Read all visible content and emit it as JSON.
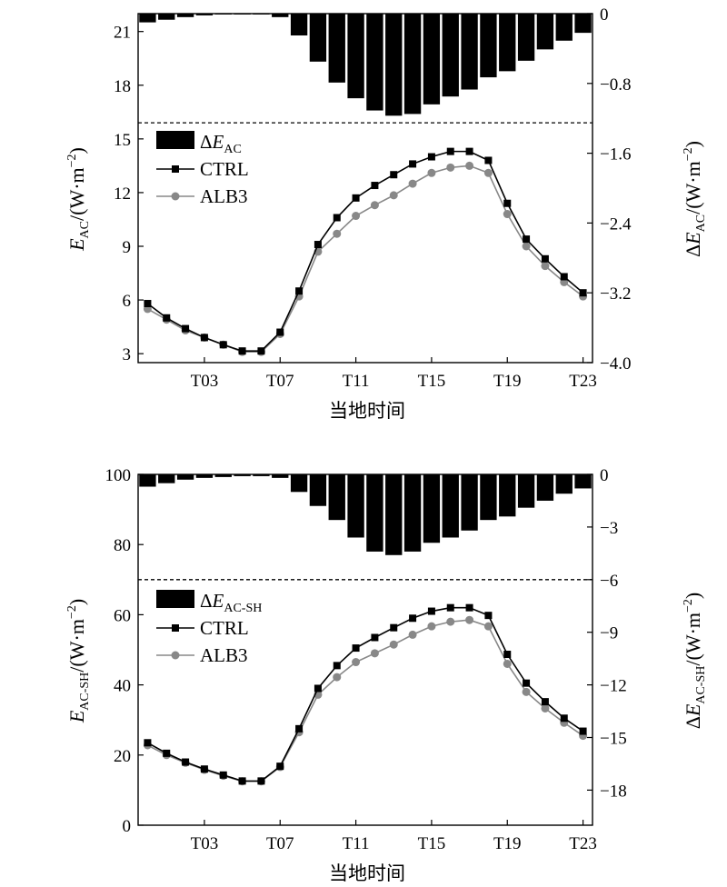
{
  "chart_data": [
    {
      "type": "bar+line",
      "x": [
        0,
        1,
        2,
        3,
        4,
        5,
        6,
        7,
        8,
        9,
        10,
        11,
        12,
        13,
        14,
        15,
        16,
        17,
        18,
        19,
        20,
        21,
        22,
        23
      ],
      "xtick_labels": [
        "T03",
        "T07",
        "T11",
        "T15",
        "T19",
        "T23"
      ],
      "xtick_positions": [
        3,
        7,
        11,
        15,
        19,
        23
      ],
      "xlabel": "当地时间",
      "ylabel_left": {
        "main": "E",
        "sub": "AC",
        "tail": "/(W·m",
        "sup": "−2",
        "close": ")"
      },
      "ylabel_right": {
        "main": "ΔE",
        "sub": "AC",
        "tail": "/(W·m",
        "sup": "−2",
        "close": ")"
      },
      "ylim_left": [
        2.5,
        22
      ],
      "yticks_left": [
        "3",
        "6",
        "9",
        "12",
        "15",
        "18",
        "21"
      ],
      "ylim_right": [
        -4.0,
        0
      ],
      "yticks_right": [
        "0",
        "−0.8",
        "−1.6",
        "−2.4",
        "−3.2",
        "−4.0"
      ],
      "yticks_right_values": [
        0,
        -0.8,
        -1.6,
        -2.4,
        -3.2,
        -4.0
      ],
      "yticks_left_values": [
        3,
        6,
        9,
        12,
        15,
        18,
        21
      ],
      "dashed_line_left_y": 15.9,
      "bar_axis_span": [
        22,
        15.9
      ],
      "legend": [
        {
          "label_main": "ΔE",
          "label_sub": "AC",
          "marker": "bar"
        },
        {
          "label": "CTRL",
          "marker": "square",
          "color": "#000000"
        },
        {
          "label": "ALB3",
          "marker": "circle",
          "color": "#888888"
        }
      ],
      "series": [
        {
          "name": "CTRL",
          "values": [
            5.8,
            5.0,
            4.4,
            3.9,
            3.5,
            3.15,
            3.15,
            4.2,
            6.5,
            9.1,
            10.6,
            11.7,
            12.4,
            13.0,
            13.6,
            14.0,
            14.3,
            14.3,
            13.8,
            11.4,
            9.4,
            8.3,
            7.3,
            6.4
          ]
        },
        {
          "name": "ALB3",
          "values": [
            5.5,
            4.9,
            4.3,
            3.9,
            3.5,
            3.1,
            3.1,
            4.1,
            6.2,
            8.7,
            9.7,
            10.7,
            11.3,
            11.85,
            12.5,
            13.1,
            13.4,
            13.5,
            13.1,
            10.8,
            9.0,
            7.9,
            7.0,
            6.2
          ]
        },
        {
          "name": "ΔE_AC",
          "values": [
            -0.1,
            -0.07,
            -0.04,
            -0.02,
            -0.01,
            -0.01,
            -0.01,
            -0.04,
            -0.25,
            -0.55,
            -0.79,
            -0.97,
            -1.11,
            -1.17,
            -1.15,
            -1.04,
            -0.95,
            -0.87,
            -0.73,
            -0.66,
            -0.54,
            -0.41,
            -0.31,
            -0.22
          ]
        }
      ]
    },
    {
      "type": "bar+line",
      "x": [
        0,
        1,
        2,
        3,
        4,
        5,
        6,
        7,
        8,
        9,
        10,
        11,
        12,
        13,
        14,
        15,
        16,
        17,
        18,
        19,
        20,
        21,
        22,
        23
      ],
      "xtick_labels": [
        "T03",
        "T07",
        "T11",
        "T15",
        "T19",
        "T23"
      ],
      "xtick_positions": [
        3,
        7,
        11,
        15,
        19,
        23
      ],
      "xlabel": "当地时间",
      "ylabel_left": {
        "main": "E",
        "sub": "AC-SH",
        "tail": "/(W·m",
        "sup": "−2",
        "close": ")"
      },
      "ylabel_right": {
        "main": "ΔE",
        "sub": "AC-SH",
        "tail": "/(W·m",
        "sup": "−2",
        "close": ")"
      },
      "ylim_left": [
        0,
        100
      ],
      "yticks_left": [
        "0",
        "20",
        "40",
        "60",
        "80",
        "100"
      ],
      "yticks_left_values": [
        0,
        20,
        40,
        60,
        80,
        100
      ],
      "ylim_right": [
        -20,
        0
      ],
      "yticks_right": [
        "0",
        "−3",
        "−6",
        "−9",
        "−12",
        "−15",
        "−18"
      ],
      "yticks_right_values": [
        0,
        -3,
        -6,
        -9,
        -12,
        -15,
        -18
      ],
      "dashed_line_left_y": 70,
      "bar_axis_span": [
        100,
        70
      ],
      "legend": [
        {
          "label_main": "ΔE",
          "label_sub": "AC-SH",
          "marker": "bar"
        },
        {
          "label": "CTRL",
          "marker": "square",
          "color": "#000000"
        },
        {
          "label": "ALB3",
          "marker": "circle",
          "color": "#888888"
        }
      ],
      "series": [
        {
          "name": "CTRL",
          "values": [
            23.5,
            20.5,
            18.0,
            16.0,
            14.3,
            12.6,
            12.6,
            16.8,
            27.5,
            39.0,
            45.5,
            50.5,
            53.5,
            56.3,
            59.0,
            61.0,
            62.0,
            62.0,
            59.8,
            48.7,
            40.5,
            35.2,
            30.5,
            26.8
          ]
        },
        {
          "name": "ALB3",
          "values": [
            22.8,
            20.0,
            17.8,
            15.8,
            14.1,
            12.5,
            12.5,
            16.6,
            26.5,
            37.2,
            42.2,
            46.5,
            49.0,
            51.5,
            54.3,
            56.7,
            58.0,
            58.5,
            56.7,
            46.0,
            38.0,
            33.3,
            29.2,
            25.5
          ]
        },
        {
          "name": "ΔE_AC-SH",
          "values": [
            -0.7,
            -0.5,
            -0.3,
            -0.2,
            -0.15,
            -0.1,
            -0.1,
            -0.2,
            -1.0,
            -1.8,
            -2.6,
            -3.6,
            -4.4,
            -4.6,
            -4.4,
            -3.9,
            -3.6,
            -3.2,
            -2.6,
            -2.4,
            -1.9,
            -1.5,
            -1.1,
            -0.8
          ]
        }
      ]
    }
  ]
}
